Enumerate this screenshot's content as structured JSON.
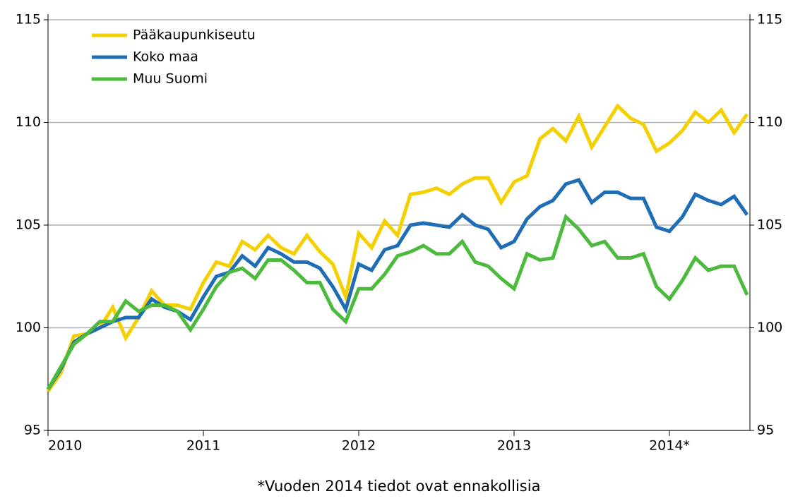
{
  "chart_data": {
    "type": "line",
    "categories": [
      "2010",
      null,
      null,
      null,
      null,
      null,
      null,
      null,
      null,
      null,
      null,
      null,
      "2011",
      null,
      null,
      null,
      null,
      null,
      null,
      null,
      null,
      null,
      null,
      null,
      "2012",
      null,
      null,
      null,
      null,
      null,
      null,
      null,
      null,
      null,
      null,
      null,
      "2013",
      null,
      null,
      null,
      null,
      null,
      null,
      null,
      null,
      null,
      null,
      null,
      "2014*",
      null,
      null,
      null,
      null,
      null,
      null
    ],
    "series": [
      {
        "name": "Pääkaupunkiseutu",
        "color": "#f5d000",
        "values": [
          96.9,
          97.8,
          99.6,
          99.7,
          100.0,
          101.0,
          99.5,
          100.5,
          101.8,
          101.1,
          101.1,
          100.9,
          102.2,
          103.2,
          103.0,
          104.2,
          103.8,
          104.5,
          103.9,
          103.6,
          104.5,
          103.7,
          103.1,
          101.5,
          104.6,
          103.9,
          105.2,
          104.5,
          106.5,
          106.6,
          106.8,
          106.5,
          107.0,
          107.3,
          107.3,
          106.1,
          107.1,
          107.4,
          109.2,
          109.7,
          109.1,
          110.3,
          108.8,
          109.8,
          110.8,
          110.2,
          109.9,
          108.6,
          109.0,
          109.6,
          110.5,
          110.0,
          110.6,
          109.5,
          110.4
        ]
      },
      {
        "name": "Koko maa",
        "color": "#1f6db5",
        "values": [
          97.0,
          98.0,
          99.3,
          99.7,
          100.0,
          100.3,
          100.5,
          100.5,
          101.4,
          101.0,
          100.8,
          100.4,
          101.5,
          102.5,
          102.7,
          103.5,
          103.0,
          103.9,
          103.6,
          103.2,
          103.2,
          102.9,
          102.0,
          100.9,
          103.1,
          102.8,
          103.8,
          104.0,
          105.0,
          105.1,
          105.0,
          104.9,
          105.5,
          105.0,
          104.8,
          103.9,
          104.2,
          105.3,
          105.9,
          106.2,
          107.0,
          107.2,
          106.1,
          106.6,
          106.6,
          106.3,
          106.3,
          104.9,
          104.7,
          105.4,
          106.5,
          106.2,
          106.0,
          106.4,
          105.5
        ]
      },
      {
        "name": "Muu Suomi",
        "color": "#4cba3c",
        "values": [
          97.0,
          98.1,
          99.2,
          99.7,
          100.3,
          100.3,
          101.3,
          100.8,
          101.1,
          101.1,
          100.8,
          99.9,
          100.9,
          102.0,
          102.7,
          102.9,
          102.4,
          103.3,
          103.3,
          102.8,
          102.2,
          102.2,
          100.9,
          100.3,
          101.9,
          101.9,
          102.6,
          103.5,
          103.7,
          104.0,
          103.6,
          103.6,
          104.2,
          103.2,
          103.0,
          102.4,
          101.9,
          103.6,
          103.3,
          103.4,
          105.4,
          104.8,
          104.0,
          104.2,
          103.4,
          103.4,
          103.6,
          102.0,
          101.4,
          102.3,
          103.4,
          102.8,
          103.0,
          103.0,
          101.6
        ]
      }
    ],
    "ylim": [
      95,
      115
    ],
    "yticks": [
      95,
      100,
      105,
      110,
      115
    ],
    "grid": true,
    "note": "*Vuoden 2014 tiedot ovat ennakollisia"
  }
}
